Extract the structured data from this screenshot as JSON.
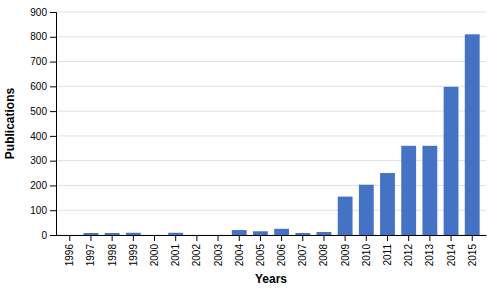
{
  "chart_data": {
    "type": "bar",
    "categories": [
      "1996",
      "1997",
      "1998",
      "1999",
      "2000",
      "2001",
      "2002",
      "2003",
      "2004",
      "2005",
      "2006",
      "2007",
      "2008",
      "2009",
      "2010",
      "2011",
      "2012",
      "2013",
      "2014",
      "2015"
    ],
    "values": [
      0,
      8,
      8,
      9,
      0,
      9,
      0,
      0,
      20,
      15,
      25,
      8,
      12,
      155,
      203,
      250,
      360,
      360,
      598,
      810
    ],
    "color": "#4472C4",
    "xlabel": "Years",
    "ylabel": "Publications",
    "ylim": [
      0,
      900
    ],
    "yticks": [
      0,
      100,
      200,
      300,
      400,
      500,
      600,
      700,
      800,
      900
    ],
    "grid": true
  }
}
